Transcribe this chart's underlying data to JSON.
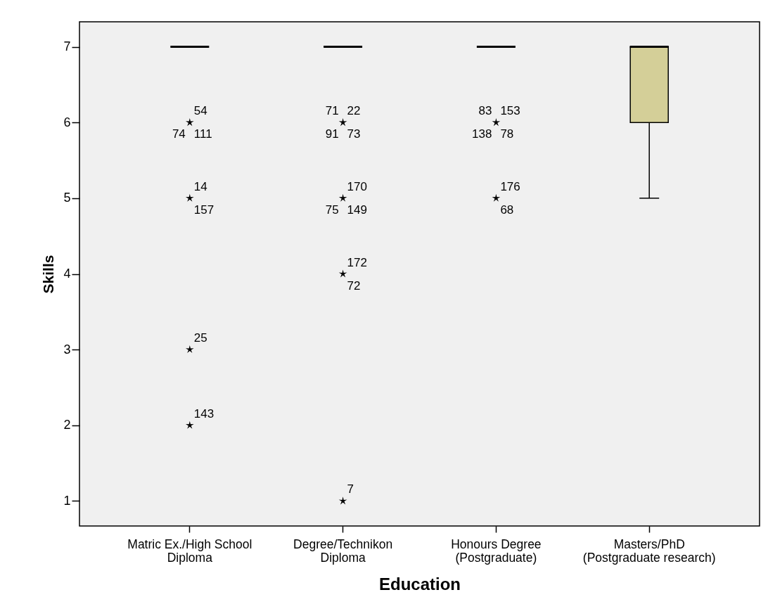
{
  "chart_data": {
    "type": "box",
    "xlabel": "Education",
    "ylabel": "Skills",
    "categories": [
      "Matric Ex./High School\nDiploma",
      "Degree/Technikon\nDiploma",
      "Honours Degree\n(Postgraduate)",
      "Masters/PhD\n(Postgraduate research)"
    ],
    "boxes": [
      {
        "low": 7,
        "q1": 7,
        "median": 7,
        "q3": 7,
        "high": 7
      },
      {
        "low": 7,
        "q1": 7,
        "median": 7,
        "q3": 7,
        "high": 7
      },
      {
        "low": 7,
        "q1": 7,
        "median": 7,
        "q3": 7,
        "high": 7
      },
      {
        "low": 5,
        "q1": 6,
        "median": 7,
        "q3": 7,
        "high": 7
      }
    ],
    "colors": [
      "#000000",
      "#000000",
      "#000000",
      "#d4cf98"
    ],
    "series": [
      {
        "type": "scatter",
        "color": "#000000",
        "x": [
          "Matric Ex./High School\nDiploma",
          "Matric Ex./High School\nDiploma",
          "Matric Ex./High School\nDiploma",
          "Matric Ex./High School\nDiploma",
          "Degree/Technikon\nDiploma",
          "Degree/Technikon\nDiploma",
          "Degree/Technikon\nDiploma",
          "Degree/Technikon\nDiploma",
          "Honours Degree\n(Postgraduate)",
          "Honours Degree\n(Postgraduate)"
        ],
        "values": [
          6,
          5,
          3,
          2,
          6,
          5,
          4,
          1,
          6,
          5
        ]
      }
    ],
    "ylim": [
      0.67,
      7.33
    ],
    "yticks": [
      1,
      2,
      3,
      4,
      5,
      6,
      7
    ],
    "marker": "star",
    "annotations": [
      {
        "text": "54",
        "x": "Matric Ex./High School\nDiploma",
        "y": 6
      },
      {
        "text": "111",
        "x": "Matric Ex./High School\nDiploma",
        "y": 6
      },
      {
        "text": "74",
        "x": "Matric Ex./High School\nDiploma",
        "y": 6
      },
      {
        "text": "14",
        "x": "Matric Ex./High School\nDiploma",
        "y": 5
      },
      {
        "text": "157",
        "x": "Matric Ex./High School\nDiploma",
        "y": 5
      },
      {
        "text": "25",
        "x": "Matric Ex./High School\nDiploma",
        "y": 3
      },
      {
        "text": "143",
        "x": "Matric Ex./High School\nDiploma",
        "y": 2
      },
      {
        "text": "22",
        "x": "Degree/Technikon\nDiploma",
        "y": 6
      },
      {
        "text": "73",
        "x": "Degree/Technikon\nDiploma",
        "y": 6
      },
      {
        "text": "91",
        "x": "Degree/Technikon\nDiploma",
        "y": 6
      },
      {
        "text": "71",
        "x": "Degree/Technikon\nDiploma",
        "y": 6
      },
      {
        "text": "170",
        "x": "Degree/Technikon\nDiploma",
        "y": 5
      },
      {
        "text": "149",
        "x": "Degree/Technikon\nDiploma",
        "y": 5
      },
      {
        "text": "75",
        "x": "Degree/Technikon\nDiploma",
        "y": 5
      },
      {
        "text": "172",
        "x": "Degree/Technikon\nDiploma",
        "y": 4
      },
      {
        "text": "72",
        "x": "Degree/Technikon\nDiploma",
        "y": 4
      },
      {
        "text": "7",
        "x": "Degree/Technikon\nDiploma",
        "y": 1
      },
      {
        "text": "153",
        "x": "Honours Degree\n(Postgraduate)",
        "y": 6
      },
      {
        "text": "78",
        "x": "Honours Degree\n(Postgraduate)",
        "y": 6
      },
      {
        "text": "138",
        "x": "Honours Degree\n(Postgraduate)",
        "y": 6
      },
      {
        "text": "83",
        "x": "Honours Degree\n(Postgraduate)",
        "y": 6
      },
      {
        "text": "176",
        "x": "Honours Degree\n(Postgraduate)",
        "y": 5
      },
      {
        "text": "68",
        "x": "Honours Degree\n(Postgraduate)",
        "y": 5
      }
    ]
  }
}
